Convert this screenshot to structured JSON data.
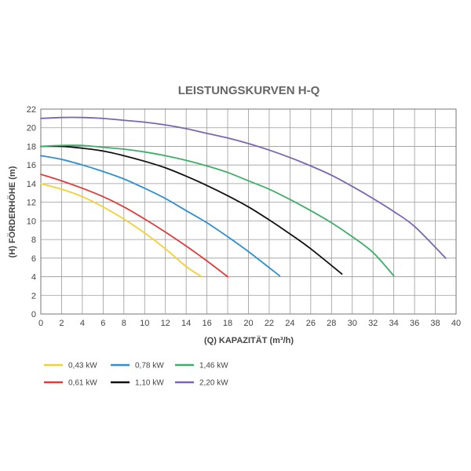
{
  "chart_data": {
    "type": "line",
    "title": "LEISTUNGSKURVEN H-Q",
    "xlabel": "(Q)  KAPAZITÄT  (m³/h)",
    "ylabel": "(H)  FÖRDERHÖHE  (m)",
    "xlim": [
      0,
      40
    ],
    "ylim": [
      0,
      22
    ],
    "x_ticks": [
      0,
      2,
      4,
      6,
      8,
      10,
      12,
      14,
      16,
      18,
      20,
      22,
      24,
      26,
      28,
      30,
      32,
      34,
      36,
      38,
      40
    ],
    "y_ticks": [
      0,
      2,
      4,
      6,
      8,
      10,
      12,
      14,
      16,
      18,
      20,
      22
    ],
    "grid": true,
    "legend_position": "bottom",
    "series": [
      {
        "name": "0,43 kW",
        "color": "#f2d037",
        "x": [
          0,
          2,
          4,
          6,
          8,
          10,
          12,
          14,
          15.5
        ],
        "y": [
          14.0,
          13.4,
          12.6,
          11.5,
          10.2,
          8.7,
          7.0,
          5.1,
          4.0
        ]
      },
      {
        "name": "0,61 kW",
        "color": "#e03c3c",
        "x": [
          0,
          2,
          4,
          6,
          8,
          10,
          12,
          14,
          16,
          18
        ],
        "y": [
          15.0,
          14.3,
          13.5,
          12.6,
          11.5,
          10.2,
          8.8,
          7.3,
          5.7,
          4.0
        ]
      },
      {
        "name": "0,78 kW",
        "color": "#2f8fcf",
        "x": [
          0,
          2,
          4,
          6,
          8,
          10,
          12,
          14,
          16,
          18,
          20,
          23
        ],
        "y": [
          17.0,
          16.6,
          16.0,
          15.3,
          14.5,
          13.5,
          12.4,
          11.1,
          9.8,
          8.3,
          6.7,
          4.1
        ]
      },
      {
        "name": "1,10 kW",
        "color": "#111111",
        "x": [
          0,
          2,
          4,
          6,
          8,
          10,
          12,
          14,
          16,
          18,
          20,
          22,
          24,
          26,
          29
        ],
        "y": [
          18.0,
          18.0,
          17.8,
          17.5,
          17.0,
          16.4,
          15.7,
          14.8,
          13.8,
          12.7,
          11.5,
          10.1,
          8.6,
          7.0,
          4.3
        ]
      },
      {
        "name": "1,46 kW",
        "color": "#3fae6a",
        "x": [
          0,
          2,
          4,
          6,
          8,
          10,
          12,
          14,
          16,
          18,
          20,
          22,
          24,
          26,
          28,
          30,
          32,
          34
        ],
        "y": [
          18.0,
          18.1,
          18.1,
          17.9,
          17.7,
          17.4,
          17.0,
          16.5,
          15.9,
          15.2,
          14.3,
          13.4,
          12.3,
          11.1,
          9.8,
          8.3,
          6.6,
          4.1
        ]
      },
      {
        "name": "2,20 kW",
        "color": "#7a67b0",
        "x": [
          0,
          2,
          4,
          6,
          8,
          10,
          12,
          14,
          16,
          18,
          20,
          22,
          24,
          26,
          28,
          30,
          32,
          34,
          36,
          39
        ],
        "y": [
          21.0,
          21.1,
          21.1,
          21.0,
          20.8,
          20.6,
          20.3,
          19.9,
          19.4,
          18.9,
          18.3,
          17.6,
          16.8,
          15.9,
          14.9,
          13.7,
          12.4,
          11.0,
          9.4,
          6.0
        ]
      }
    ]
  }
}
